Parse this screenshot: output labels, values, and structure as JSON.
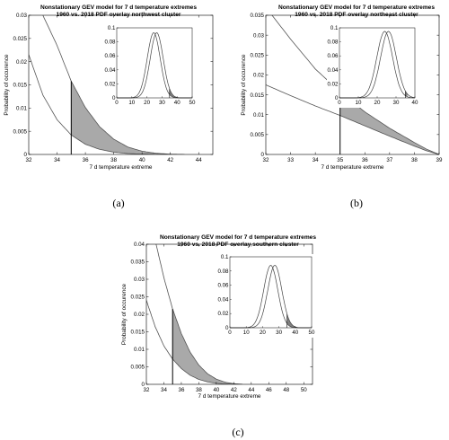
{
  "figure_captions": [
    "(a)",
    "(b)",
    "(c)"
  ],
  "chart_data": [
    {
      "type": "line",
      "title": "Nonstationary GEV model for 7 d temperature extremes",
      "subtitle": "1960 vs. 2018 PDF overlay northwest cluster",
      "xlabel": "7 d temperature extreme",
      "ylabel": "Probability of occurence",
      "xlim": [
        32,
        45
      ],
      "ylim": [
        0,
        0.03
      ],
      "xticks": [
        "32",
        "34",
        "36",
        "38",
        "40",
        "42",
        "44"
      ],
      "yticks": [
        "0",
        "0.005",
        "0.01",
        "0.015",
        "0.02",
        "0.025",
        "0.03"
      ],
      "threshold": 35,
      "shaded": "area between the two curves for x >= 35",
      "series": [
        {
          "values": [
            [
              32,
              0.0215
            ],
            [
              33,
              0.0128
            ],
            [
              34,
              0.0075
            ],
            [
              35,
              0.0042
            ],
            [
              36,
              0.0022
            ],
            [
              37,
              0.0011
            ],
            [
              38,
              0.0005
            ],
            [
              39,
              0.0002
            ],
            [
              40,
              7e-05
            ],
            [
              41,
              2e-05
            ],
            [
              42,
              0
            ]
          ]
        },
        {
          "values": [
            [
              33,
              0.03
            ],
            [
              34,
              0.0235
            ],
            [
              35,
              0.0158
            ],
            [
              36,
              0.0101
            ],
            [
              37,
              0.006
            ],
            [
              38,
              0.0033
            ],
            [
              39,
              0.0016
            ],
            [
              40,
              0.0007
            ],
            [
              41,
              0.00025
            ],
            [
              42,
              5e-05
            ],
            [
              43,
              0
            ]
          ]
        }
      ],
      "inset": {
        "xlim": [
          0,
          50
        ],
        "ylim": [
          0,
          0.1
        ],
        "xticks": [
          "0",
          "10",
          "20",
          "30",
          "40",
          "50"
        ],
        "yticks": [
          "0",
          "0.02",
          "0.04",
          "0.06",
          "0.08",
          "0.1"
        ],
        "threshold": 35,
        "series": [
          {
            "mu": 24.5,
            "sigma": 4.3,
            "peak": 0.093
          },
          {
            "mu": 26.5,
            "sigma": 4.3,
            "peak": 0.093
          }
        ]
      }
    },
    {
      "type": "line",
      "title": "Nonstationary GEV model for 7 d temperature extremes",
      "subtitle": "1960 vs. 2018 PDF overlay northeast cluster",
      "xlabel": "7 d temperature extreme",
      "ylabel": "Probability of occurence",
      "xlim": [
        32,
        39
      ],
      "ylim": [
        0,
        0.035
      ],
      "xticks": [
        "32",
        "33",
        "34",
        "35",
        "36",
        "37",
        "38",
        "39"
      ],
      "yticks": [
        "0",
        "0.005",
        "0.01",
        "0.015",
        "0.02",
        "0.025",
        "0.03",
        "0.035"
      ],
      "threshold": 35,
      "shaded": "area between the two curves for x >= 35",
      "series": [
        {
          "values": [
            [
              32,
              0.0175
            ],
            [
              33,
              0.0148
            ],
            [
              34,
              0.0122
            ],
            [
              35,
              0.0098
            ],
            [
              36,
              0.0072
            ],
            [
              37,
              0.0046
            ],
            [
              38,
              0.0021
            ],
            [
              38.5,
              0.0009
            ],
            [
              39,
              0
            ]
          ]
        },
        {
          "values": [
            [
              32,
              0.037
            ],
            [
              33,
              0.029
            ],
            [
              34,
              0.0215
            ],
            [
              35,
              0.0157
            ],
            [
              36,
              0.0107
            ],
            [
              37,
              0.0066
            ],
            [
              38,
              0.003
            ],
            [
              38.5,
              0.0013
            ],
            [
              39,
              0
            ]
          ]
        }
      ],
      "inset": {
        "xlim": [
          0,
          40
        ],
        "ylim": [
          0,
          0.1
        ],
        "xticks": [
          "0",
          "10",
          "20",
          "30",
          "40"
        ],
        "yticks": [
          "0",
          "0.02",
          "0.04",
          "0.06",
          "0.08",
          "0.1"
        ],
        "threshold": 35,
        "series": [
          {
            "mu": 24.0,
            "sigma": 4.2,
            "peak": 0.095
          },
          {
            "mu": 26.0,
            "sigma": 4.2,
            "peak": 0.095
          }
        ]
      }
    },
    {
      "type": "line",
      "title": "Nonstationary GEV model for 7 d temperature extremes",
      "subtitle": "1960 vs. 2018 PDF overlay southern cluster",
      "xlabel": "7 d temperature extreme",
      "ylabel": "Probability of occurence",
      "xlim": [
        32,
        51
      ],
      "ylim": [
        0,
        0.04
      ],
      "xticks": [
        "32",
        "34",
        "36",
        "38",
        "40",
        "42",
        "44",
        "46",
        "48",
        "50"
      ],
      "yticks": [
        "0",
        "0.005",
        "0.01",
        "0.015",
        "0.02",
        "0.025",
        "0.03",
        "0.035",
        "0.04"
      ],
      "threshold": 35,
      "shaded": "area between the two curves for x >= 35",
      "series": [
        {
          "values": [
            [
              32,
              0.024
            ],
            [
              33,
              0.0165
            ],
            [
              34,
              0.011
            ],
            [
              35,
              0.0072
            ],
            [
              36,
              0.0045
            ],
            [
              37,
              0.0026
            ],
            [
              38,
              0.0014
            ],
            [
              39,
              0.0007
            ],
            [
              40,
              0.0003
            ],
            [
              41,
              0.0001
            ],
            [
              42,
              0
            ]
          ]
        },
        {
          "values": [
            [
              33,
              0.0412
            ],
            [
              34,
              0.0305
            ],
            [
              35,
              0.0215
            ],
            [
              36,
              0.0145
            ],
            [
              37,
              0.0092
            ],
            [
              38,
              0.0055
            ],
            [
              39,
              0.003
            ],
            [
              40,
              0.0015
            ],
            [
              41,
              0.0006
            ],
            [
              42,
              0.0002
            ],
            [
              43,
              0
            ]
          ]
        }
      ],
      "inset": {
        "xlim": [
          0,
          50
        ],
        "ylim": [
          0,
          0.1
        ],
        "xticks": [
          "0",
          "10",
          "20",
          "30",
          "40",
          "50"
        ],
        "yticks": [
          "0",
          "0.02",
          "0.04",
          "0.06",
          "0.08",
          "0.1"
        ],
        "threshold": 35,
        "series": [
          {
            "mu": 25.0,
            "sigma": 4.3,
            "peak": 0.088
          },
          {
            "mu": 27.5,
            "sigma": 4.3,
            "peak": 0.088
          }
        ]
      }
    }
  ]
}
